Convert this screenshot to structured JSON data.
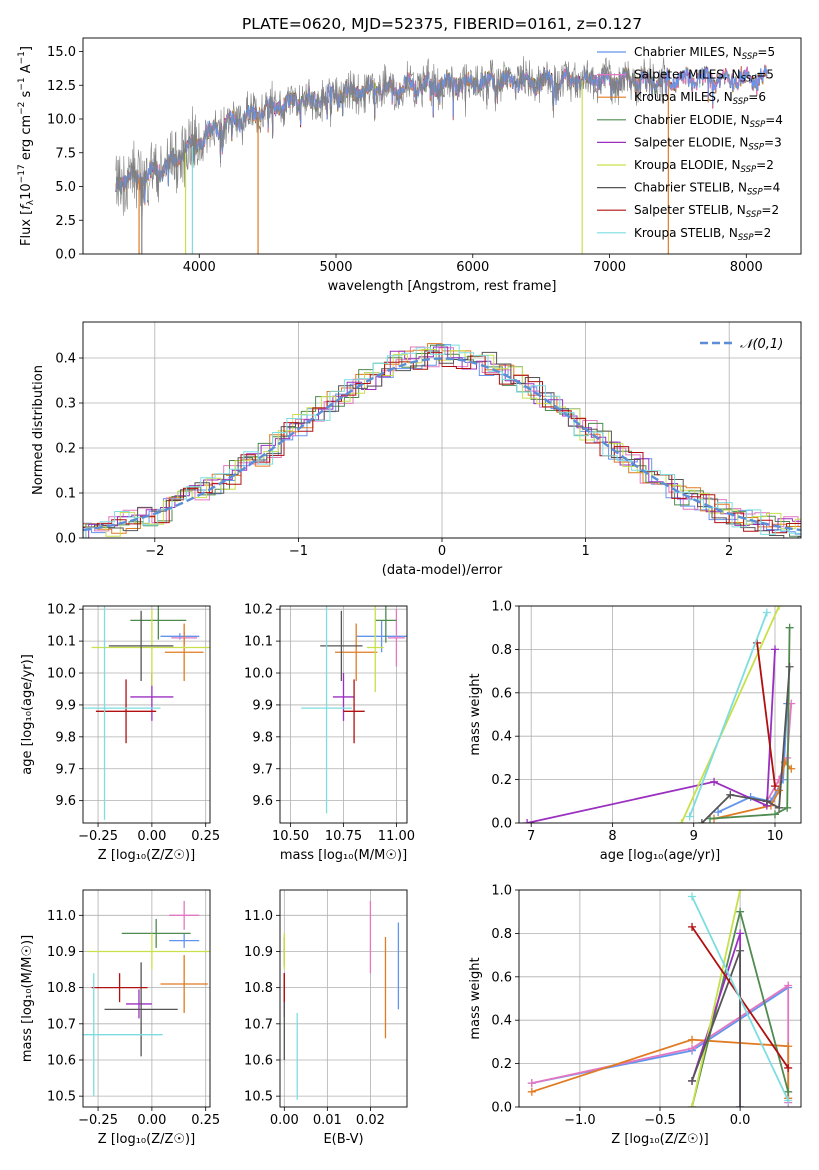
{
  "colors": {
    "Chabrier MILES": "#6495ed",
    "Salpeter MILES": "#e377c2",
    "Kroupa MILES": "#e07b22",
    "Chabrier ELODIE": "#4f8a4f",
    "Salpeter ELODIE": "#9b30c0",
    "Kroupa ELODIE": "#c8e04a",
    "Chabrier STELIB": "#555555",
    "Salpeter STELIB": "#b01010",
    "Kroupa STELIB": "#7ddde0"
  },
  "chart_data": [
    {
      "id": "spectrum",
      "type": "line",
      "title": "PLATE=0620, MJD=52375, FIBERID=0161, z=0.127",
      "xlabel": "wavelength [Angstrom, rest frame]",
      "ylabel": "Flux [f_λ 10^-17 erg cm^-2 s^-1 A^-1]",
      "xlim": [
        3150,
        8400
      ],
      "ylim": [
        0,
        16
      ],
      "xticks": [
        4000,
        5000,
        6000,
        7000,
        8000
      ],
      "yticks": [
        0.0,
        2.5,
        5.0,
        7.5,
        10.0,
        12.5,
        15.0
      ],
      "grid": false,
      "legend_position": "top-right",
      "legend": [
        {
          "name": "Chabrier MILES",
          "nssp": "5"
        },
        {
          "name": "Salpeter MILES",
          "nssp": "5"
        },
        {
          "name": "Kroupa MILES",
          "nssp": "6"
        },
        {
          "name": "Chabrier ELODIE",
          "nssp": "4"
        },
        {
          "name": "Salpeter ELODIE",
          "nssp": "3"
        },
        {
          "name": "Kroupa ELODIE",
          "nssp": "2"
        },
        {
          "name": "Chabrier STELIB",
          "nssp": "4"
        },
        {
          "name": "Salpeter STELIB",
          "nssp": "2"
        },
        {
          "name": "Kroupa STELIB",
          "nssp": "2"
        }
      ],
      "data_color": "#808080",
      "data_start": 3390,
      "data_end": 7410,
      "model_end": 8150,
      "continuum": [
        [
          3390,
          5.3
        ],
        [
          3550,
          5.6
        ],
        [
          3700,
          6.2
        ],
        [
          3800,
          6.8
        ],
        [
          3900,
          7.5
        ],
        [
          3950,
          8.0
        ],
        [
          4100,
          9.2
        ],
        [
          4300,
          10.0
        ],
        [
          4500,
          10.8
        ],
        [
          4700,
          11.3
        ],
        [
          4900,
          11.6
        ],
        [
          5100,
          12.0
        ],
        [
          5300,
          12.2
        ],
        [
          5600,
          12.5
        ],
        [
          6000,
          12.7
        ],
        [
          6500,
          12.8
        ],
        [
          7000,
          12.9
        ],
        [
          7500,
          12.9
        ],
        [
          8150,
          13.0
        ]
      ],
      "spikes": [
        {
          "x": 3560,
          "y": 0,
          "color": "#e07b22"
        },
        {
          "x": 3580,
          "y": 0,
          "color": "#808080"
        },
        {
          "x": 3900,
          "y": 0,
          "color": "#c8e04a"
        },
        {
          "x": 3950,
          "y": 0,
          "color": "#7ddde0"
        },
        {
          "x": 4430,
          "y": 0,
          "color": "#e07b22"
        },
        {
          "x": 6800,
          "y": 0,
          "color": "#c8e04a"
        },
        {
          "x": 7430,
          "y": 0,
          "color": "#e07b22"
        }
      ]
    },
    {
      "id": "residuals",
      "type": "line",
      "xlabel": "(data-model)/error",
      "ylabel": "Normed distribution",
      "xlim": [
        -2.5,
        2.5
      ],
      "ylim": [
        0,
        0.48
      ],
      "xticks": [
        -2,
        -1,
        0,
        1,
        2
      ],
      "yticks": [
        0.0,
        0.1,
        0.2,
        0.3,
        0.4
      ],
      "grid": true,
      "legend_label": "𝒩(0,1)",
      "legend_position": "top-right",
      "gauss_color": "#5b8ed6"
    },
    {
      "id": "age-vs-Z",
      "type": "scatter",
      "xlabel": "Z [log₁₀(Z/Z☉)]",
      "ylabel": "age  [log₁₀(age/yr)]",
      "xlim": [
        -0.32,
        0.27
      ],
      "ylim": [
        9.53,
        10.21
      ],
      "xticks": [
        -0.25,
        0.0,
        0.25
      ],
      "yticks": [
        9.6,
        9.7,
        9.8,
        9.9,
        10.0,
        10.1,
        10.2
      ],
      "grid": true,
      "points": [
        {
          "model": "Chabrier MILES",
          "x": 0.13,
          "y": 10.115,
          "xerr": 0.09,
          "yerr": 0.01
        },
        {
          "model": "Salpeter MILES",
          "x": 0.15,
          "y": 10.11,
          "xerr": 0.06,
          "yerr": 0.02
        },
        {
          "model": "Kroupa MILES",
          "x": 0.15,
          "y": 10.065,
          "xerr": 0.09,
          "yerr": 0.09
        },
        {
          "model": "Chabrier ELODIE",
          "x": 0.03,
          "y": 10.165,
          "xerr": 0.13,
          "yerr": 0.06
        },
        {
          "model": "Salpeter ELODIE",
          "x": 0.0,
          "y": 9.925,
          "xerr": 0.1,
          "yerr": 0.075
        },
        {
          "model": "Kroupa ELODIE",
          "x": 0.0,
          "y": 10.08,
          "xerr": 0.28,
          "yerr": 0.12
        },
        {
          "model": "Chabrier STELIB",
          "x": -0.05,
          "y": 10.085,
          "xerr": 0.15,
          "yerr": 0.11
        },
        {
          "model": "Salpeter STELIB",
          "x": -0.12,
          "y": 9.88,
          "xerr": 0.14,
          "yerr": 0.1
        },
        {
          "model": "Kroupa STELIB",
          "x": -0.22,
          "y": 9.89,
          "xerr": 0.26,
          "yerr": 0.35
        }
      ]
    },
    {
      "id": "age-vs-mass",
      "type": "scatter",
      "xlabel": "mass [log₁₀(M/M☉)]",
      "ylabel": "",
      "xlim": [
        10.45,
        11.05
      ],
      "ylim": [
        9.53,
        10.21
      ],
      "xticks": [
        10.5,
        10.75,
        11.0
      ],
      "yticks": [
        9.6,
        9.7,
        9.8,
        9.9,
        10.0,
        10.1,
        10.2
      ],
      "grid": true,
      "points": [
        {
          "model": "Chabrier MILES",
          "x": 10.93,
          "y": 10.115,
          "xerr": 0.12,
          "yerr": 0.05
        },
        {
          "model": "Salpeter MILES",
          "x": 11.0,
          "y": 10.11,
          "xerr": 0.04,
          "yerr": 0.09
        },
        {
          "model": "Kroupa MILES",
          "x": 10.81,
          "y": 10.065,
          "xerr": 0.1,
          "yerr": 0.09
        },
        {
          "model": "Chabrier ELODIE",
          "x": 10.95,
          "y": 10.165,
          "xerr": 0.05,
          "yerr": 0.07
        },
        {
          "model": "Salpeter ELODIE",
          "x": 10.75,
          "y": 9.925,
          "xerr": 0.05,
          "yerr": 0.075
        },
        {
          "model": "Kroupa ELODIE",
          "x": 10.9,
          "y": 10.08,
          "xerr": 0.04,
          "yerr": 0.14
        },
        {
          "model": "Chabrier STELIB",
          "x": 10.74,
          "y": 10.085,
          "xerr": 0.1,
          "yerr": 0.11
        },
        {
          "model": "Salpeter STELIB",
          "x": 10.8,
          "y": 9.88,
          "xerr": 0.05,
          "yerr": 0.1
        },
        {
          "model": "Kroupa STELIB",
          "x": 10.67,
          "y": 9.89,
          "xerr": 0.12,
          "yerr": 0.33
        }
      ]
    },
    {
      "id": "massweight-vs-age",
      "type": "line",
      "xlabel": "age  [log₁₀(age/yr)]",
      "ylabel": "mass weight",
      "xlim": [
        6.85,
        10.32
      ],
      "ylim": [
        0,
        1.0
      ],
      "xticks": [
        7,
        8,
        9,
        10
      ],
      "yticks": [
        0.0,
        0.2,
        0.4,
        0.6,
        0.8,
        1.0
      ],
      "grid": true,
      "series": [
        {
          "model": "Chabrier MILES",
          "x": [
            9.3,
            9.7,
            9.95,
            10.1,
            10.15
          ],
          "y": [
            0.05,
            0.12,
            0.1,
            0.2,
            0.55
          ]
        },
        {
          "model": "Salpeter MILES",
          "x": [
            9.9,
            10.05,
            10.15,
            10.2
          ],
          "y": [
            0.1,
            0.2,
            0.3,
            0.55
          ]
        },
        {
          "model": "Kroupa MILES",
          "x": [
            9.25,
            9.95,
            10.05,
            10.12,
            10.2
          ],
          "y": [
            0.02,
            0.08,
            0.15,
            0.28,
            0.25
          ]
        },
        {
          "model": "Chabrier ELODIE",
          "x": [
            9.2,
            10.0,
            10.15,
            10.18
          ],
          "y": [
            0.02,
            0.04,
            0.07,
            0.9
          ]
        },
        {
          "model": "Salpeter ELODIE",
          "x": [
            6.95,
            9.25,
            9.9,
            10.0
          ],
          "y": [
            0.0,
            0.19,
            0.08,
            0.8
          ]
        },
        {
          "model": "Kroupa ELODIE",
          "x": [
            8.85,
            10.05
          ],
          "y": [
            0.0,
            1.0
          ]
        },
        {
          "model": "Chabrier STELIB",
          "x": [
            9.1,
            9.45,
            9.9,
            10.05,
            10.18
          ],
          "y": [
            0.0,
            0.13,
            0.1,
            0.07,
            0.72
          ]
        },
        {
          "model": "Salpeter STELIB",
          "x": [
            9.78,
            10.0
          ],
          "y": [
            0.83,
            0.17
          ]
        },
        {
          "model": "Kroupa STELIB",
          "x": [
            8.95,
            9.9
          ],
          "y": [
            0.03,
            0.97
          ]
        }
      ]
    },
    {
      "id": "mass-vs-Z",
      "type": "scatter",
      "xlabel": "Z [log₁₀(Z/Z☉)]",
      "ylabel": "mass [log₁₀(M/M☉)]",
      "xlim": [
        -0.32,
        0.27
      ],
      "ylim": [
        10.47,
        11.07
      ],
      "xticks": [
        -0.25,
        0.0,
        0.25
      ],
      "yticks": [
        10.5,
        10.6,
        10.7,
        10.8,
        10.9,
        11.0
      ],
      "grid": true,
      "points": [
        {
          "model": "Chabrier MILES",
          "x": 0.15,
          "y": 10.93,
          "xerr": 0.07,
          "yerr": 0.02
        },
        {
          "model": "Salpeter MILES",
          "x": 0.15,
          "y": 11.0,
          "xerr": 0.07,
          "yerr": 0.04
        },
        {
          "model": "Kroupa MILES",
          "x": 0.15,
          "y": 10.81,
          "xerr": 0.11,
          "yerr": 0.08
        },
        {
          "model": "Chabrier ELODIE",
          "x": 0.02,
          "y": 10.95,
          "xerr": 0.16,
          "yerr": 0.04
        },
        {
          "model": "Salpeter ELODIE",
          "x": -0.06,
          "y": 10.755,
          "xerr": 0.06,
          "yerr": 0.04
        },
        {
          "model": "Kroupa ELODIE",
          "x": 0.0,
          "y": 10.9,
          "xerr": 0.3,
          "yerr": 0.05
        },
        {
          "model": "Chabrier STELIB",
          "x": -0.05,
          "y": 10.74,
          "xerr": 0.17,
          "yerr": 0.13
        },
        {
          "model": "Salpeter STELIB",
          "x": -0.15,
          "y": 10.8,
          "xerr": 0.13,
          "yerr": 0.04
        },
        {
          "model": "Kroupa STELIB",
          "x": -0.27,
          "y": 10.67,
          "xerr": 0.32,
          "yerr": 0.17
        }
      ]
    },
    {
      "id": "mass-vs-EBV",
      "type": "scatter",
      "xlabel": "E(B-V)",
      "ylabel": "",
      "xlim": [
        -0.001,
        0.0285
      ],
      "ylim": [
        10.47,
        11.07
      ],
      "xticks": [
        0.0,
        0.01,
        0.02
      ],
      "yticks": [
        10.5,
        10.6,
        10.7,
        10.8,
        10.9,
        11.0
      ],
      "grid": true,
      "points": [
        {
          "model": "Chabrier MILES",
          "x": 0.0265,
          "y": 10.86,
          "xerr": 0,
          "yerr": 0.12
        },
        {
          "model": "Salpeter MILES",
          "x": 0.02,
          "y": 10.94,
          "xerr": 0,
          "yerr": 0.1
        },
        {
          "model": "Kroupa MILES",
          "x": 0.0235,
          "y": 10.8,
          "xerr": 0,
          "yerr": 0.14
        },
        {
          "model": "Chabrier ELODIE",
          "x": 0.0,
          "y": 10.9,
          "xerr": 0,
          "yerr": 0.04
        },
        {
          "model": "Salpeter ELODIE",
          "x": 0.0,
          "y": 10.78,
          "xerr": 0,
          "yerr": 0.06
        },
        {
          "model": "Kroupa ELODIE",
          "x": 0.0,
          "y": 10.9,
          "xerr": 0,
          "yerr": 0.05
        },
        {
          "model": "Chabrier STELIB",
          "x": 0.0,
          "y": 10.72,
          "xerr": 0,
          "yerr": 0.12
        },
        {
          "model": "Salpeter STELIB",
          "x": 0.0,
          "y": 10.8,
          "xerr": 0,
          "yerr": 0.04
        },
        {
          "model": "Kroupa STELIB",
          "x": 0.003,
          "y": 10.61,
          "xerr": 0,
          "yerr": 0.12
        }
      ]
    },
    {
      "id": "massweight-vs-Z",
      "type": "line",
      "xlabel": "Z [log₁₀(Z/Z☉)]",
      "ylabel": "mass weight",
      "xlim": [
        -1.38,
        0.38
      ],
      "ylim": [
        0,
        1.0
      ],
      "xticks": [
        -1.0,
        -0.5,
        0.0
      ],
      "yticks": [
        0.0,
        0.2,
        0.4,
        0.6,
        0.8,
        1.0
      ],
      "grid": true,
      "series": [
        {
          "model": "Chabrier MILES",
          "x": [
            -1.3,
            -0.3,
            0.3
          ],
          "y": [
            0.11,
            0.26,
            0.55
          ]
        },
        {
          "model": "Salpeter MILES",
          "x": [
            -1.3,
            -0.3,
            0.3,
            0.3
          ],
          "y": [
            0.11,
            0.27,
            0.56,
            0.02
          ]
        },
        {
          "model": "Kroupa MILES",
          "x": [
            -1.3,
            -0.3,
            0.3,
            0.3
          ],
          "y": [
            0.07,
            0.31,
            0.28,
            0.04
          ]
        },
        {
          "model": "Chabrier ELODIE",
          "x": [
            -0.3,
            0.0,
            0.3
          ],
          "y": [
            0.0,
            0.9,
            0.07
          ]
        },
        {
          "model": "Salpeter ELODIE",
          "x": [
            -0.3,
            0.0,
            0.0
          ],
          "y": [
            0.12,
            0.8,
            0.0
          ]
        },
        {
          "model": "Kroupa ELODIE",
          "x": [
            -0.3,
            0.0
          ],
          "y": [
            0.0,
            1.0
          ]
        },
        {
          "model": "Chabrier STELIB",
          "x": [
            -0.3,
            0.0,
            0.0
          ],
          "y": [
            0.12,
            0.72,
            0.0
          ]
        },
        {
          "model": "Salpeter STELIB",
          "x": [
            -0.3,
            0.3
          ],
          "y": [
            0.83,
            0.18
          ]
        },
        {
          "model": "Kroupa STELIB",
          "x": [
            -0.3,
            0.3
          ],
          "y": [
            0.97,
            0.03
          ]
        }
      ]
    }
  ]
}
